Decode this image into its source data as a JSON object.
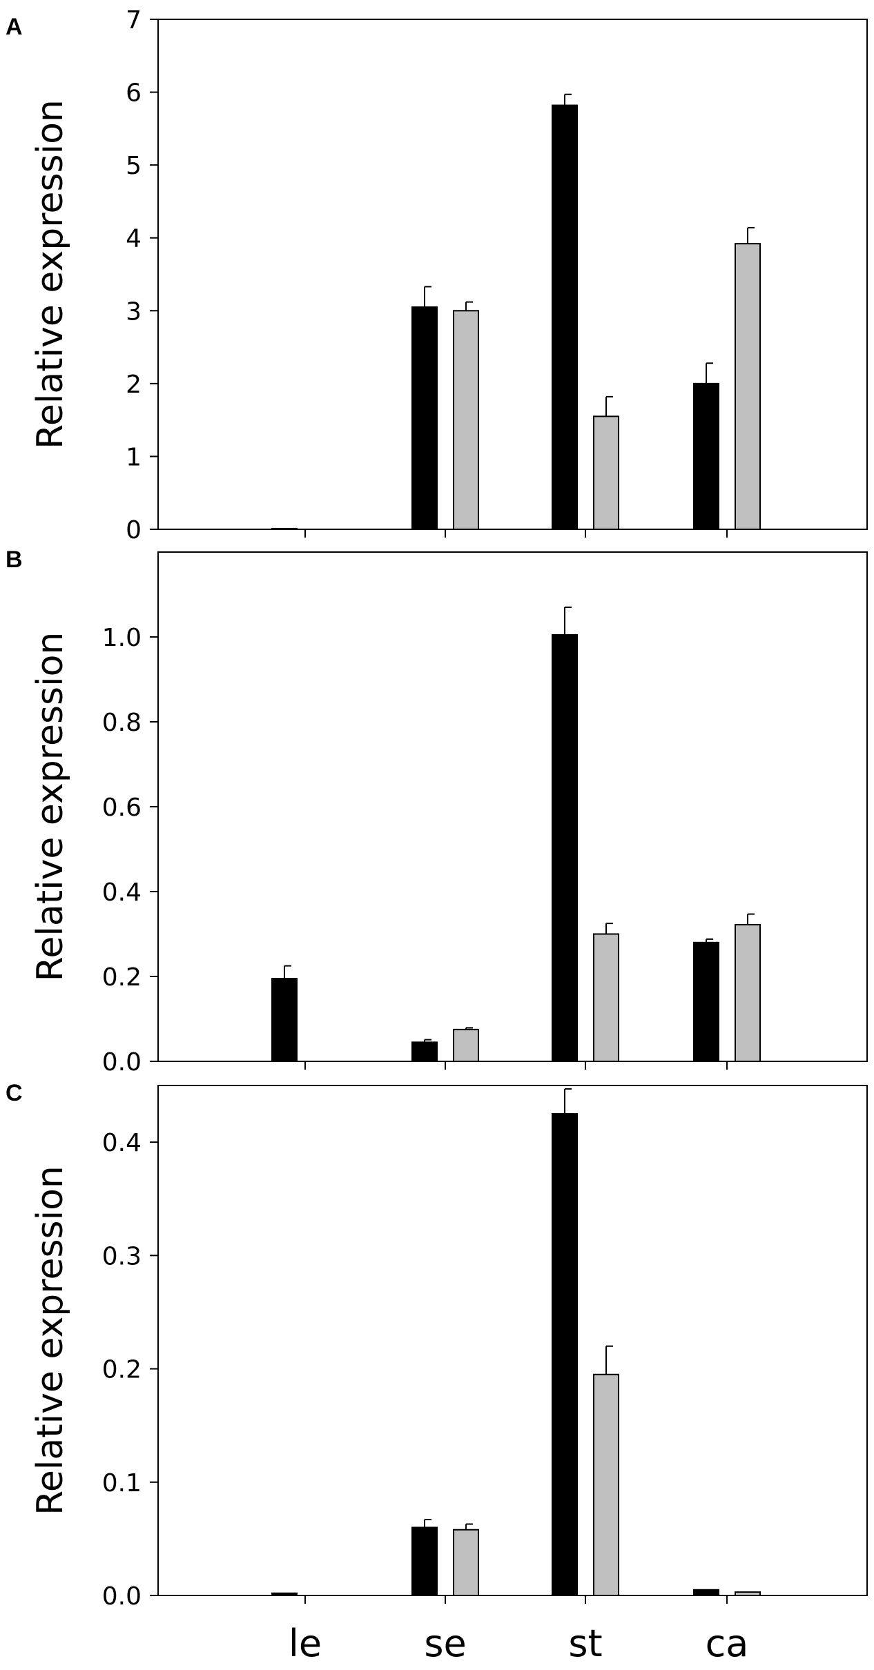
{
  "chart_data": [
    {
      "type": "bar",
      "panel": "A",
      "ylabel": "Relative expression",
      "ylim": [
        0,
        7
      ],
      "yticks": [
        "0",
        "1",
        "2",
        "3",
        "4",
        "5",
        "6",
        "7"
      ],
      "categories": [
        "le",
        "se",
        "st",
        "ca"
      ],
      "series": [
        {
          "color": "#000000",
          "values": [
            0.01,
            3.05,
            5.82,
            2.0
          ],
          "errors": [
            0.0,
            0.28,
            0.15,
            0.28
          ]
        },
        {
          "color": "#c0c0c0",
          "values": [
            0.0,
            3.0,
            1.55,
            3.92
          ],
          "errors": [
            0.0,
            0.12,
            0.27,
            0.22
          ]
        }
      ]
    },
    {
      "type": "bar",
      "panel": "B",
      "ylabel": "Relative expression",
      "ylim": [
        0,
        1.2
      ],
      "yticks": [
        "0.0",
        "0.2",
        "0.4",
        "0.6",
        "0.8",
        "1.0"
      ],
      "categories": [
        "le",
        "se",
        "st",
        "ca"
      ],
      "series": [
        {
          "color": "#000000",
          "values": [
            0.195,
            0.045,
            1.005,
            0.28
          ],
          "errors": [
            0.03,
            0.006,
            0.065,
            0.008
          ]
        },
        {
          "color": "#c0c0c0",
          "values": [
            0.0,
            0.075,
            0.3,
            0.322
          ],
          "errors": [
            0.0,
            0.004,
            0.025,
            0.025
          ]
        }
      ]
    },
    {
      "type": "bar",
      "panel": "C",
      "ylabel": "Relative expression",
      "ylim": [
        0,
        0.45
      ],
      "yticks": [
        "0.0",
        "0.1",
        "0.2",
        "0.3",
        "0.4"
      ],
      "categories": [
        "le",
        "se",
        "st",
        "ca"
      ],
      "series": [
        {
          "color": "#000000",
          "values": [
            0.002,
            0.06,
            0.425,
            0.005
          ],
          "errors": [
            0.0,
            0.007,
            0.022,
            0.0
          ]
        },
        {
          "color": "#c0c0c0",
          "values": [
            0.0,
            0.058,
            0.195,
            0.003
          ],
          "errors": [
            0.0,
            0.005,
            0.025,
            0.0
          ]
        }
      ]
    }
  ]
}
